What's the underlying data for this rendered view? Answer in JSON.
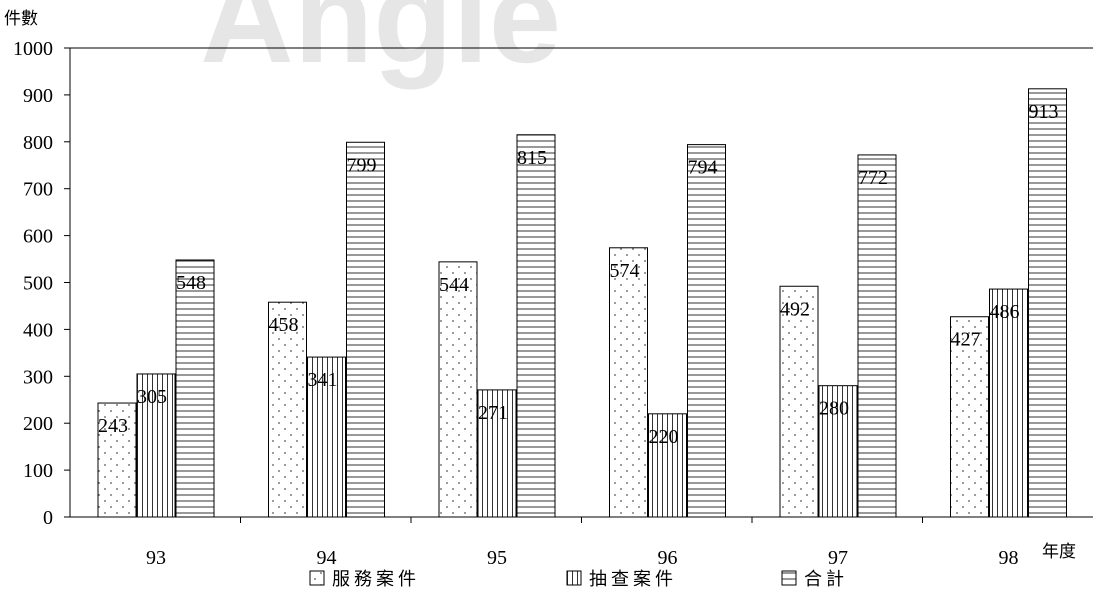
{
  "chart_data": {
    "type": "bar",
    "ylabel": "件數",
    "xlabel": "年度",
    "ylim": [
      0,
      1000
    ],
    "yticks": [
      0,
      100,
      200,
      300,
      400,
      500,
      600,
      700,
      800,
      900,
      1000
    ],
    "categories": [
      "93",
      "94",
      "95",
      "96",
      "97",
      "98"
    ],
    "series": [
      {
        "name": "服務案件",
        "values": [
          243,
          458,
          544,
          574,
          492,
          427
        ],
        "pattern": "dots"
      },
      {
        "name": "抽查案件",
        "values": [
          305,
          341,
          271,
          220,
          280,
          486
        ],
        "pattern": "vertical"
      },
      {
        "name": "合計",
        "values": [
          548,
          799,
          815,
          794,
          772,
          913
        ],
        "pattern": "horizontal"
      }
    ],
    "grid": false,
    "legend_position": "bottom",
    "watermark_text": "Angle",
    "colors": {
      "bar_stroke": "#000000",
      "bar_fill": "#ffffff",
      "watermark": "#e6e6e6"
    }
  }
}
